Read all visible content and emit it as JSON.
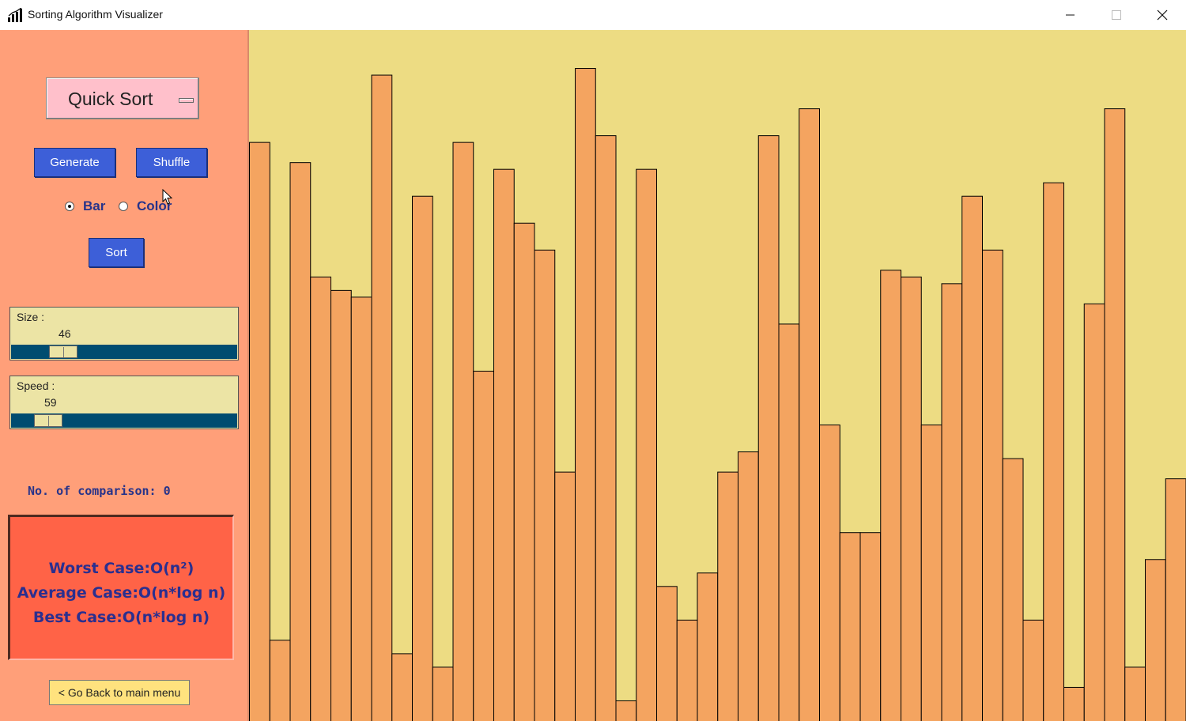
{
  "window": {
    "title": "Sorting Algorithm Visualizer",
    "controls": [
      "minimize",
      "maximize",
      "close"
    ]
  },
  "controls": {
    "algorithm_selected": "Quick Sort",
    "generate_label": "Generate",
    "shuffle_label": "Shuffle",
    "view_mode": {
      "selected": "Bar",
      "options": [
        "Bar",
        "Color"
      ]
    },
    "sort_label": "Sort",
    "size": {
      "label": "Size :",
      "value": "46"
    },
    "speed": {
      "label": "Speed :",
      "value": "59"
    }
  },
  "stats": {
    "comparisons_text": "No. of comparison: 0"
  },
  "complexity": {
    "worst": "Worst Case:O(n²)",
    "average": "Average Case:O(n*log n)",
    "best": "Best Case:O(n*log n)"
  },
  "back_label": "< Go Back to main menu",
  "colors": {
    "panel_bg": "#ff9f79",
    "canvas_bg": "#eddc83",
    "bar_fill": "#f4a460",
    "button_blue": "#3d5fd8",
    "complexity_bg": "#ff6347",
    "text_navy": "#27338a"
  },
  "chart_data": {
    "type": "bar",
    "values": [
      86,
      12,
      83,
      66,
      64,
      63,
      96,
      10,
      78,
      8,
      86,
      52,
      82,
      74,
      70,
      37,
      97,
      87,
      3,
      82,
      20,
      15,
      22,
      37,
      40,
      87,
      59,
      91,
      44,
      28,
      28,
      67,
      66,
      44,
      65,
      78,
      70,
      39,
      15,
      80,
      5,
      62,
      91,
      8,
      24,
      36
    ],
    "ylim": [
      0,
      100
    ]
  }
}
